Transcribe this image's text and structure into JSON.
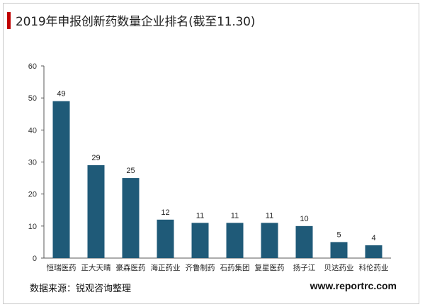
{
  "header": {
    "title": "2019年申报创新药数量企业排名(截至11.30)"
  },
  "footer": {
    "source": "数据来源：锐观咨询整理",
    "website": "www.reportrc.com"
  },
  "colors": {
    "bar": "#1f5a78",
    "title_accent": "#c00000"
  },
  "chart_data": {
    "type": "bar",
    "title": "2019年申报创新药数量企业排名(截至11.30)",
    "xlabel": "",
    "ylabel": "",
    "categories": [
      "恒瑞医药",
      "正大天晴",
      "豪森医药",
      "海正药业",
      "齐鲁制药",
      "石药集团",
      "复星医药",
      "扬子江",
      "贝达药业",
      "科伦药业"
    ],
    "values": [
      49,
      29,
      25,
      12,
      11,
      11,
      11,
      10,
      5,
      4
    ],
    "data_labels": [
      "49",
      "29",
      "25",
      "12",
      "11",
      "11",
      "11",
      "10",
      "5",
      "4"
    ],
    "ylim": [
      0,
      60
    ],
    "yticks": [
      0,
      10,
      20,
      30,
      40,
      50,
      60
    ],
    "ytick_labels": [
      "0",
      "10",
      "20",
      "30",
      "40",
      "50",
      "60"
    ],
    "grid": false,
    "legend": "none"
  }
}
